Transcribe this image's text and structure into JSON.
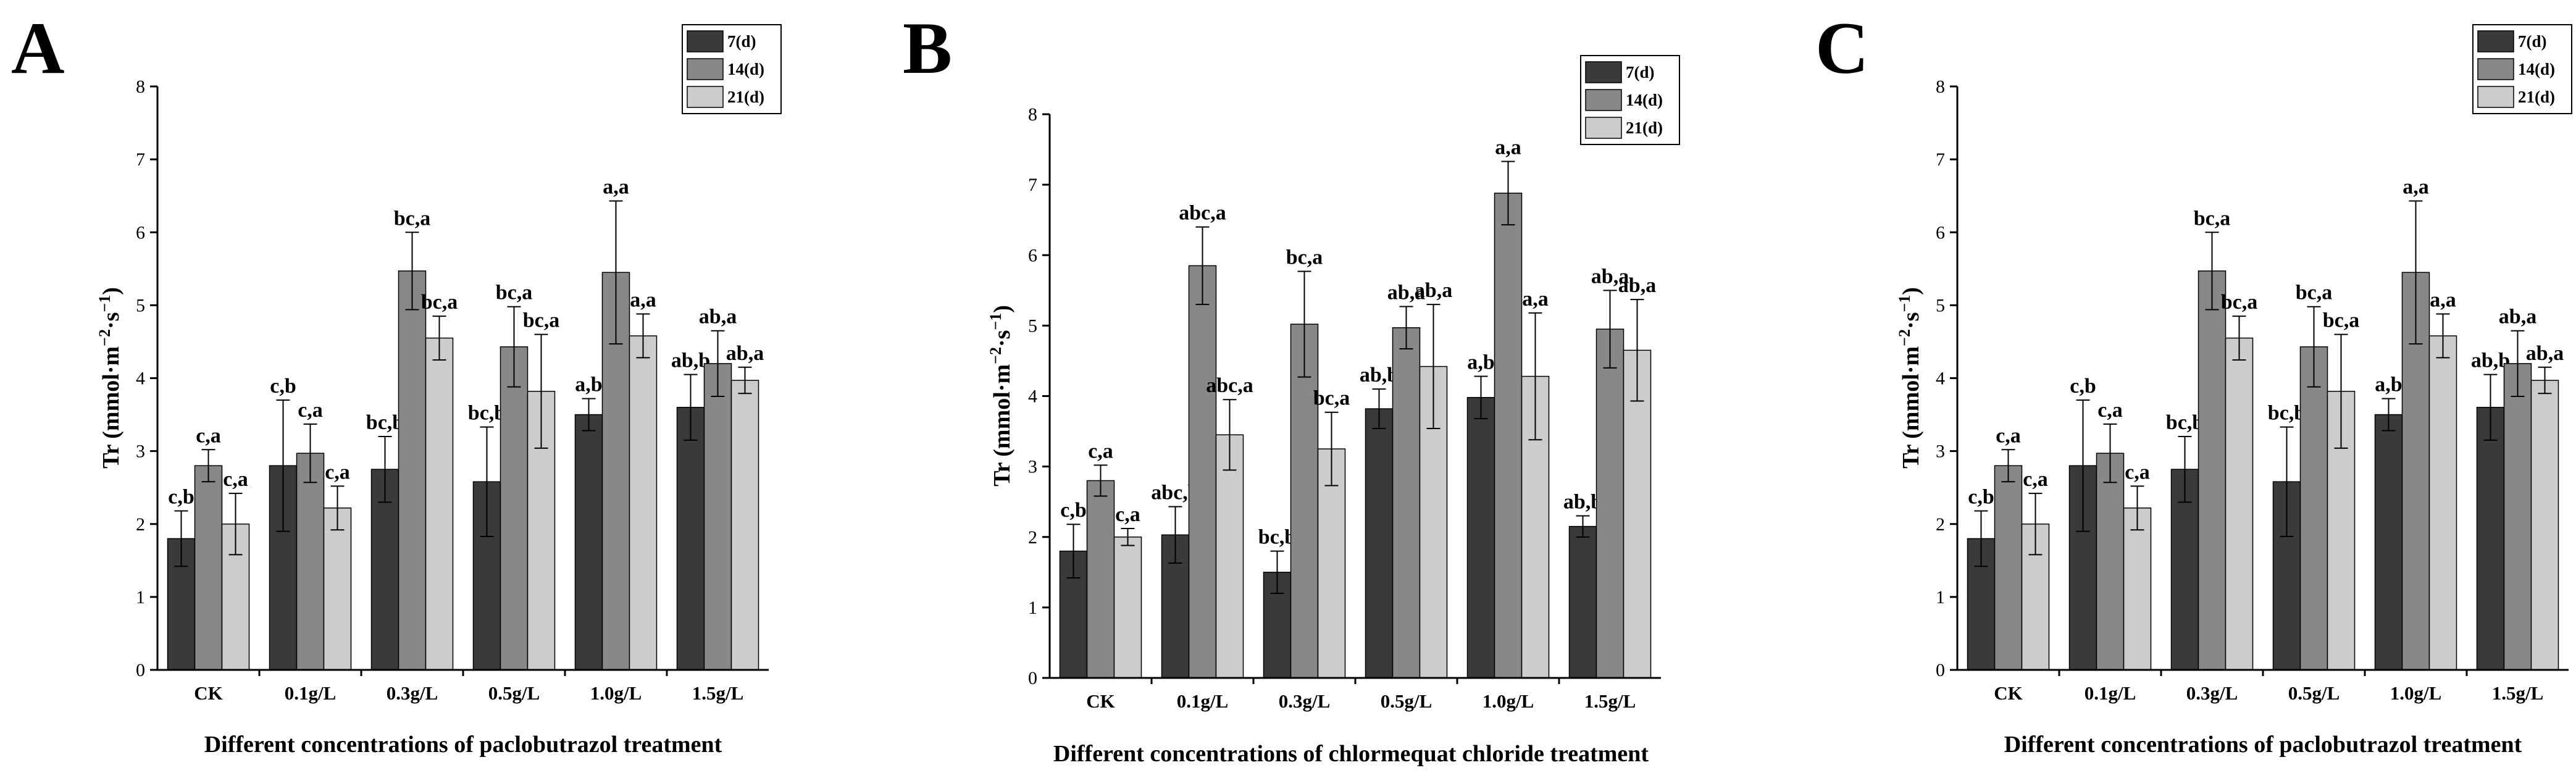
{
  "colors": {
    "series_7d": "#3a3a3a",
    "series_14d": "#888888",
    "series_21d": "#cccccc",
    "axis": "#000000",
    "background": "#ffffff"
  },
  "chart_data": [
    {
      "panel_letter": "A",
      "type": "bar",
      "title": "",
      "xlabel": "Different concentrations of paclobutrazol treatment",
      "ylabel_parts": {
        "a": "Tr (mmol·m",
        "b": "−2",
        "c": "·s",
        "d": "−1",
        "e": ")"
      },
      "ylim": [
        0,
        8
      ],
      "yticks": [
        "0",
        "1",
        "2",
        "3",
        "4",
        "5",
        "6",
        "7",
        "8"
      ],
      "legend_position": "top-right",
      "categories": [
        "CK",
        "0.1g/L",
        "0.3g/L",
        "0.5g/L",
        "1.0g/L",
        "1.5g/L"
      ],
      "series": [
        {
          "name": "7(d)",
          "values": [
            1.8,
            2.8,
            2.75,
            2.58,
            3.5,
            3.6
          ],
          "errors": [
            0.38,
            0.9,
            0.45,
            0.75,
            0.22,
            0.45
          ],
          "labels": [
            "c,b",
            "c,b",
            "bc,b",
            "bc,b",
            "a,b",
            "ab,b"
          ]
        },
        {
          "name": "14(d)",
          "values": [
            2.8,
            2.97,
            5.47,
            4.43,
            5.45,
            4.2
          ],
          "errors": [
            0.22,
            0.4,
            0.53,
            0.55,
            0.98,
            0.45
          ],
          "labels": [
            "c,a",
            "c,a",
            "bc,a",
            "bc,a",
            "a,a",
            "ab,a"
          ]
        },
        {
          "name": "21(d)",
          "values": [
            2.0,
            2.22,
            4.55,
            3.82,
            4.58,
            3.97
          ],
          "errors": [
            0.42,
            0.3,
            0.3,
            0.78,
            0.3,
            0.18
          ],
          "labels": [
            "c,a",
            "c,a",
            "bc,a",
            "bc,a",
            "a,a",
            "ab,a"
          ]
        }
      ]
    },
    {
      "panel_letter": "B",
      "type": "bar",
      "title": "",
      "xlabel": "Different concentrations of chlormequat chloride treatment",
      "ylabel_parts": {
        "a": "Tr (mmol·m",
        "b": "−2",
        "c": "·s",
        "d": "−1",
        "e": ")"
      },
      "ylim": [
        0,
        8
      ],
      "yticks": [
        "0",
        "1",
        "2",
        "3",
        "4",
        "5",
        "6",
        "7",
        "8"
      ],
      "legend_position": "top-right",
      "categories": [
        "CK",
        "0.1g/L",
        "0.3g/L",
        "0.5g/L",
        "1.0g/L",
        "1.5g/L"
      ],
      "series": [
        {
          "name": "7(d)",
          "values": [
            1.8,
            2.03,
            1.5,
            3.82,
            3.98,
            2.15
          ],
          "errors": [
            0.38,
            0.4,
            0.3,
            0.28,
            0.3,
            0.15
          ],
          "labels": [
            "c,b",
            "abc,b",
            "bc,b",
            "ab,b",
            "a,b",
            "ab,b"
          ]
        },
        {
          "name": "14(d)",
          "values": [
            2.8,
            5.85,
            5.02,
            4.97,
            6.88,
            4.95
          ],
          "errors": [
            0.22,
            0.55,
            0.75,
            0.3,
            0.45,
            0.55
          ],
          "labels": [
            "c,a",
            "abc,a",
            "bc,a",
            "ab,a",
            "a,a",
            "ab,a"
          ]
        },
        {
          "name": "21(d)",
          "values": [
            2.0,
            3.45,
            3.25,
            4.42,
            4.28,
            4.65
          ],
          "errors": [
            0.12,
            0.5,
            0.52,
            0.88,
            0.9,
            0.72
          ],
          "labels": [
            "c,a",
            "abc,a",
            "bc,a",
            "ab,a",
            "a,a",
            "ab,a"
          ]
        }
      ]
    },
    {
      "panel_letter": "C",
      "type": "bar",
      "title": "",
      "xlabel": "Different concentrations of paclobutrazol treatment",
      "ylabel_parts": {
        "a": "Tr (mmol·m",
        "b": "−2",
        "c": "·s",
        "d": "−1",
        "e": ")"
      },
      "ylim": [
        0,
        8
      ],
      "yticks": [
        "0",
        "1",
        "2",
        "3",
        "4",
        "5",
        "6",
        "7",
        "8"
      ],
      "legend_position": "top-right",
      "categories": [
        "CK",
        "0.1g/L",
        "0.3g/L",
        "0.5g/L",
        "1.0g/L",
        "1.5g/L"
      ],
      "series": [
        {
          "name": "7(d)",
          "values": [
            1.8,
            2.8,
            2.75,
            2.58,
            3.5,
            3.6
          ],
          "errors": [
            0.38,
            0.9,
            0.45,
            0.75,
            0.22,
            0.45
          ],
          "labels": [
            "c,b",
            "c,b",
            "bc,b",
            "bc,b",
            "a,b",
            "ab,b"
          ]
        },
        {
          "name": "14(d)",
          "values": [
            2.8,
            2.97,
            5.47,
            4.43,
            5.45,
            4.2
          ],
          "errors": [
            0.22,
            0.4,
            0.53,
            0.55,
            0.98,
            0.45
          ],
          "labels": [
            "c,a",
            "c,a",
            "bc,a",
            "bc,a",
            "a,a",
            "ab,a"
          ]
        },
        {
          "name": "21(d)",
          "values": [
            2.0,
            2.22,
            4.55,
            3.82,
            4.58,
            3.97
          ],
          "errors": [
            0.42,
            0.3,
            0.3,
            0.78,
            0.3,
            0.18
          ],
          "labels": [
            "c,a",
            "c,a",
            "bc,a",
            "bc,a",
            "a,a",
            "ab,a"
          ]
        }
      ]
    }
  ]
}
